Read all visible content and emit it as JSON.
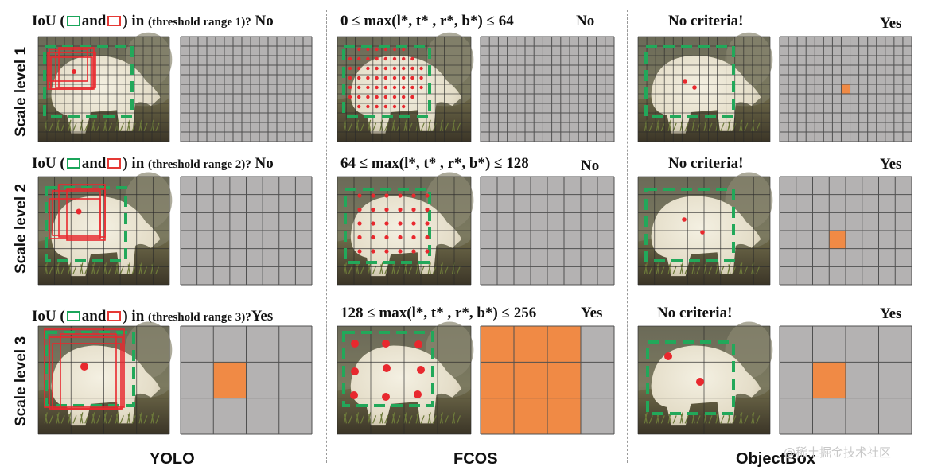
{
  "colors": {
    "grid_cell": "#b4b2b2",
    "grid_line": "#505050",
    "highlight": "#f08a45",
    "red": "#e8282e",
    "green": "#1aa55a",
    "gt_box": "#22a85a"
  },
  "columns": [
    {
      "name": "YOLO"
    },
    {
      "name": "FCOS"
    },
    {
      "name": "ObjectBox"
    }
  ],
  "rows": [
    {
      "label": "Scale level 1",
      "yolo": {
        "prefix": "IoU (",
        "and": "and",
        ") in ": ") in",
        "range": "(threshold range 1)?",
        "verdict": "No"
      },
      "fcos": {
        "criterion": "0 ≤ max(l*, t* , r*, b*) ≤ 64",
        "verdict": "No"
      },
      "objectbox": {
        "criterion": "No criteria!",
        "verdict": "Yes"
      }
    },
    {
      "label": "Scale level 2",
      "yolo": {
        "prefix": "IoU (",
        "and": "and",
        ") in ": ") in",
        "range": "(threshold range 2)?",
        "verdict": "No"
      },
      "fcos": {
        "criterion": "64 ≤ max(l*, t* , r*, b*) ≤ 128",
        "verdict": "No"
      },
      "objectbox": {
        "criterion": "No criteria!",
        "verdict": "Yes"
      }
    },
    {
      "label": "Scale level 3",
      "yolo": {
        "prefix": "IoU (",
        "and": "and",
        ") in ": ") in",
        "range": "(threshold range 3)?",
        "verdict": "Yes"
      },
      "fcos": {
        "criterion": "128 ≤ max(l*, t* , r*, b*) ≤ 256",
        "verdict": "Yes"
      },
      "objectbox": {
        "criterion": "No criteria!",
        "verdict": "Yes"
      }
    }
  ],
  "grids": {
    "level1": {
      "cols": 15,
      "rows": 11
    },
    "level2": {
      "cols": 8,
      "rows": 6
    },
    "level3": {
      "cols": 4,
      "rows": 3
    }
  },
  "highlights": {
    "yolo_l3": [
      [
        1,
        1
      ]
    ],
    "fcos_l3": [
      [
        0,
        0
      ],
      [
        1,
        0
      ],
      [
        2,
        0
      ],
      [
        0,
        1
      ],
      [
        1,
        1
      ],
      [
        2,
        1
      ],
      [
        0,
        2
      ],
      [
        1,
        2
      ],
      [
        2,
        2
      ]
    ],
    "obj_l1": [
      [
        7,
        5
      ]
    ],
    "obj_l2": [
      [
        3,
        3
      ]
    ],
    "obj_l3": [
      [
        1,
        1
      ]
    ]
  },
  "watermark": "@稀土掘金技术社区"
}
